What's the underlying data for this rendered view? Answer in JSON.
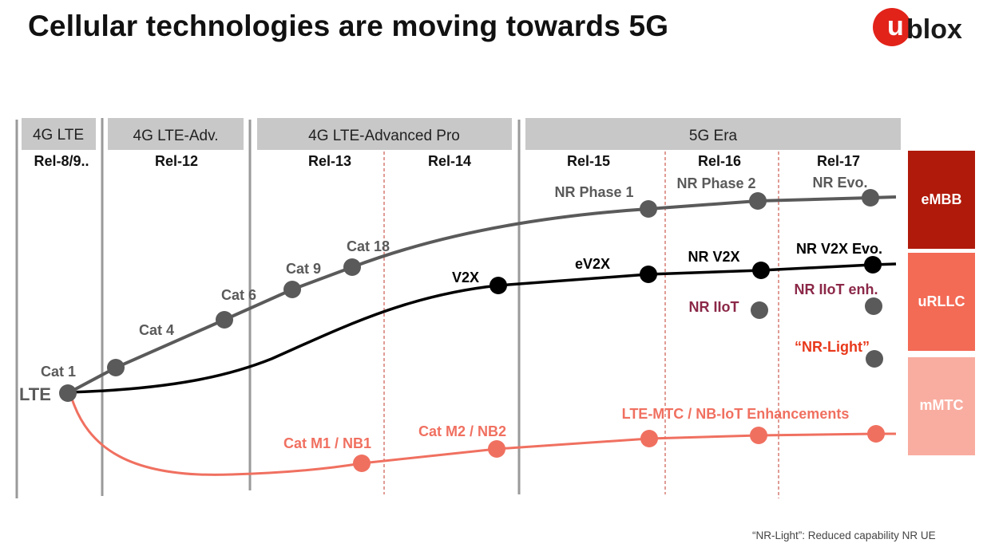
{
  "title": "Cellular technologies are moving towards 5G",
  "logo": {
    "u": "u",
    "blox": "blox"
  },
  "footnote": "“NR-Light”: Reduced capability NR UE",
  "eras": [
    "4G LTE",
    "4G LTE-Adv.",
    "4G LTE-Advanced Pro",
    "5G Era"
  ],
  "releases": [
    "Rel-8/9..",
    "Rel-12",
    "Rel-13",
    "Rel-14",
    "Rel-15",
    "Rel-16",
    "Rel-17"
  ],
  "categories": [
    "eMBB",
    "uRLLC",
    "mMTC"
  ],
  "lte_label": "LTE",
  "embb_track": [
    "Cat 1",
    "Cat 4",
    "Cat 6",
    "Cat 9",
    "Cat 18",
    "NR Phase 1",
    "NR Phase 2",
    "NR Evo."
  ],
  "urllc_track": [
    "V2X",
    "eV2X",
    "NR V2X",
    "NR V2X Evo."
  ],
  "iiot": [
    "NR IIoT",
    "NR IIoT enh."
  ],
  "nr_light": "“NR-Light”",
  "mmtc_track": [
    "Cat M1 / NB1",
    "Cat M2 / NB2",
    "LTE-MTC / NB-IoT Enhancements"
  ],
  "colors": {
    "gray": "#5a5a5a",
    "black": "#000000",
    "coral": "#f07060",
    "iiot": "#8b2848",
    "nrlight": "#e8381a",
    "embb": "#b01a0a",
    "urllc": "#f36a55",
    "mmtc": "#f9ada0"
  }
}
